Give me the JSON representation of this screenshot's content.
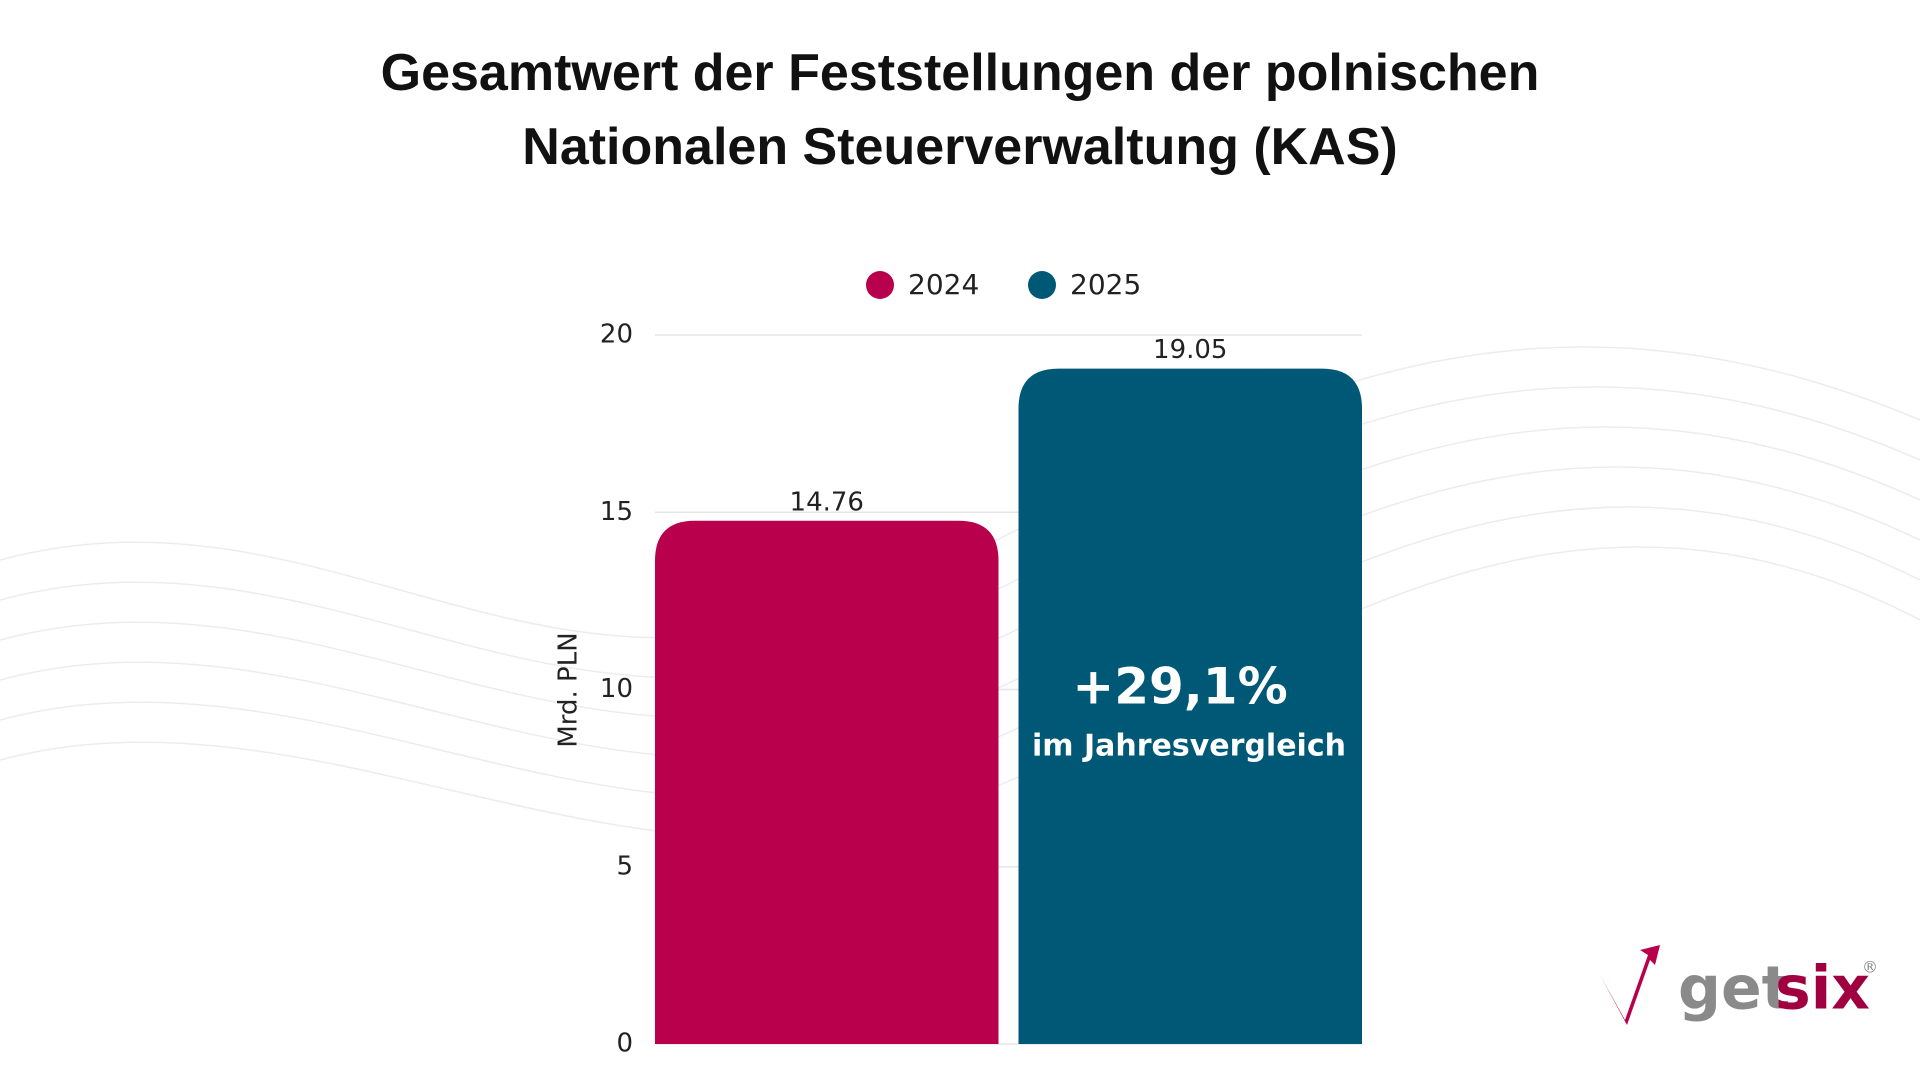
{
  "chart_data": {
    "type": "bar",
    "title": "Gesamtwert der Feststellungen der polnischen Nationalen Steuerverwaltung (KAS)",
    "y_label": "Mrd. PLN",
    "series": [
      {
        "name": "2024",
        "color": "#b8004c",
        "values": [
          14.76
        ]
      },
      {
        "name": "2025",
        "color": "#005877",
        "values": [
          19.05
        ]
      }
    ],
    "ylim": [
      0,
      20
    ],
    "yticks": [
      0,
      5,
      10,
      15,
      20
    ],
    "grid": true,
    "legend": "top",
    "annotations": [
      "+29,1%",
      "im Jahresvergleich"
    ]
  },
  "logo": {
    "text_1": "get",
    "text_2": "six",
    "mark": "®"
  }
}
